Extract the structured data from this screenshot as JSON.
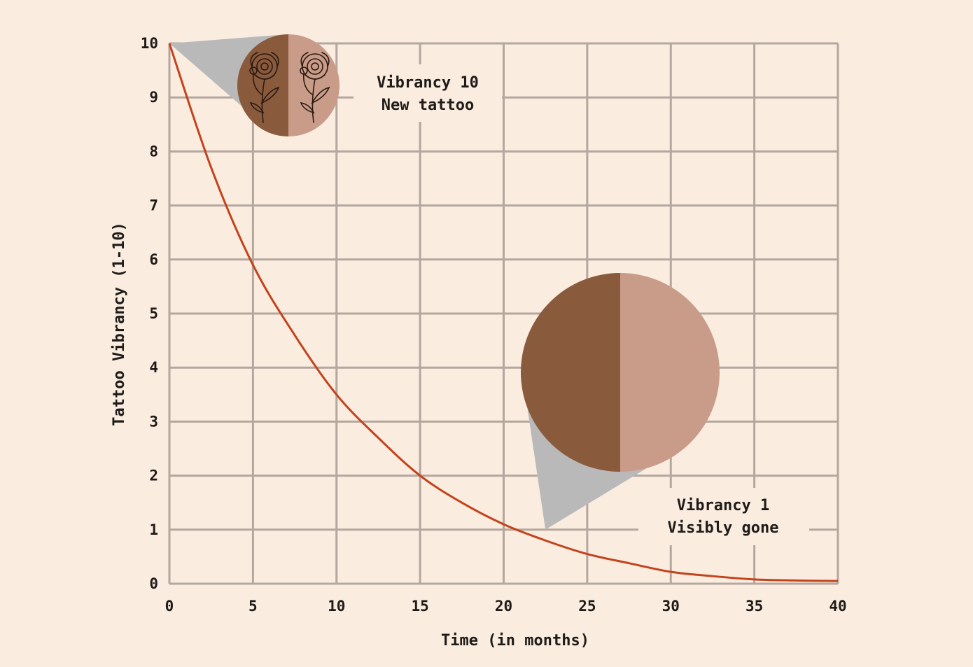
{
  "chart_data": {
    "type": "line",
    "xlabel": "Time (in months)",
    "ylabel": "Tattoo Vibrancy (1-10)",
    "xlim": [
      0,
      40
    ],
    "ylim": [
      0,
      10
    ],
    "x_ticks": [
      0,
      5,
      10,
      15,
      20,
      25,
      30,
      35,
      40
    ],
    "y_ticks": [
      0,
      1,
      2,
      3,
      4,
      5,
      6,
      7,
      8,
      9,
      10
    ],
    "grid": true,
    "series": [
      {
        "x": [
          0,
          2.5,
          5,
          7.5,
          10,
          12.5,
          15,
          17.5,
          20,
          22.5,
          25,
          27.5,
          30,
          32.5,
          35,
          37.5,
          40
        ],
        "y": [
          10,
          7.7,
          5.9,
          4.6,
          3.5,
          2.7,
          2.0,
          1.5,
          1.1,
          0.8,
          0.55,
          0.38,
          0.22,
          0.14,
          0.08,
          0.06,
          0.05
        ],
        "color": "#c2431c"
      }
    ],
    "annotations": [
      {
        "id": "new",
        "line1": "Vibrancy 10",
        "line2": "New tattoo",
        "point": [
          0,
          10
        ]
      },
      {
        "id": "gone",
        "line1": "Vibrancy 1",
        "line2": "Visibly gone",
        "point": [
          22.5,
          1
        ]
      }
    ]
  },
  "colors": {
    "background": "#fbece0",
    "grid": "#b3a79e",
    "curve": "#c2431c",
    "callout": "#b9b9b9",
    "skin_dark": "#8a5a3c",
    "skin_light": "#c99c8a"
  }
}
